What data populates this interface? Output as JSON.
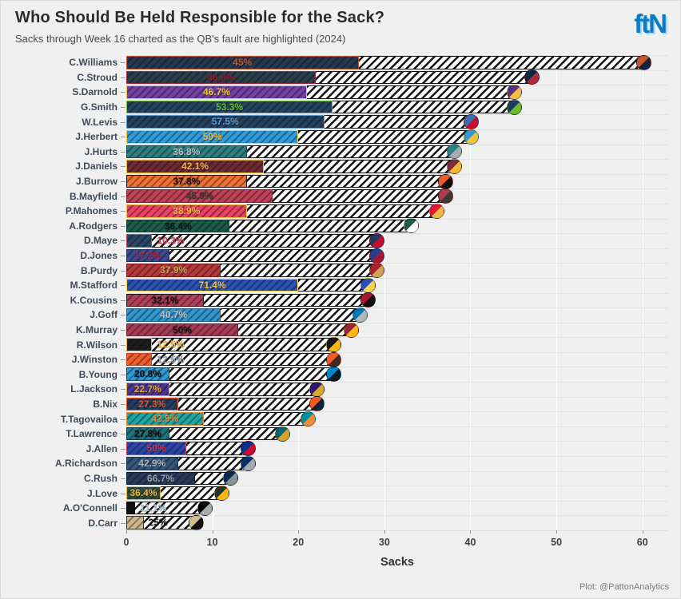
{
  "header": {
    "title": "Who Should Be Held Responsible for the Sack?",
    "subtitle": "Sacks through Week 16 charted as the QB's fault are highlighted (2024)",
    "logo_text": "ftN"
  },
  "footer": {
    "credit": "Plot: @PattonAnalytics"
  },
  "chart_data": {
    "type": "bar",
    "orientation": "horizontal",
    "title": "Who Should Be Held Responsible for the Sack?",
    "subtitle": "Sacks through Week 16 charted as the QB's fault are highlighted (2024)",
    "xlabel": "Sacks",
    "x_ticks": [
      0,
      10,
      20,
      30,
      40,
      50,
      60
    ],
    "xlim": [
      0,
      63
    ],
    "grid": true,
    "legend": "none",
    "encoding": "solid colored segment = sacks charted as the QB's fault (with % label); hatched white remainder = other sacks; team logo marks total sacks",
    "players": [
      {
        "name": "C.Williams",
        "team": "Bears",
        "pct_label": "45%",
        "pct_value": 45.0,
        "total_sacks": 60,
        "fault_sacks": 27,
        "bar_color": "#263752",
        "border_color": "#c6562e",
        "label_color": "#c6562e",
        "label_inside": true,
        "logo_colors": [
          "#c6562e",
          "#13233f"
        ]
      },
      {
        "name": "C.Stroud",
        "team": "Texans",
        "pct_label": "46.8%",
        "pct_value": 46.8,
        "total_sacks": 47,
        "fault_sacks": 22,
        "bar_color": "#2a3e4c",
        "border_color": "#9e2637",
        "label_color": "#8e1b2c",
        "label_inside": true,
        "logo_colors": [
          "#0a2a43",
          "#b32638"
        ]
      },
      {
        "name": "S.Darnold",
        "team": "Vikings",
        "pct_label": "46.7%",
        "pct_value": 46.7,
        "total_sacks": 45,
        "fault_sacks": 21,
        "bar_color": "#7142a3",
        "border_color": "#f5c246",
        "label_color": "#f2c13d",
        "label_inside": true,
        "logo_colors": [
          "#5a2f8a",
          "#f2c13d"
        ]
      },
      {
        "name": "G.Smith",
        "team": "Seahawks",
        "pct_label": "53.3%",
        "pct_value": 53.3,
        "total_sacks": 45,
        "fault_sacks": 24,
        "bar_color": "#27425f",
        "border_color": "#6fbf3a",
        "label_color": "#5fbf30",
        "label_inside": true,
        "logo_colors": [
          "#1e3a5f",
          "#69be28"
        ]
      },
      {
        "name": "W.Levis",
        "team": "Titans",
        "pct_label": "57.5%",
        "pct_value": 57.5,
        "total_sacks": 40,
        "fault_sacks": 23,
        "bar_color": "#27405e",
        "border_color": "#5d9fd6",
        "label_color": "#5d9fd6",
        "label_inside": true,
        "logo_colors": [
          "#3b6fb5",
          "#c8102e"
        ]
      },
      {
        "name": "J.Herbert",
        "team": "Chargers",
        "pct_label": "50%",
        "pct_value": 50.0,
        "total_sacks": 40,
        "fault_sacks": 20,
        "bar_color": "#2e9cdb",
        "border_color": "#f2c23e",
        "label_color": "#f2c23e",
        "label_inside": true,
        "logo_colors": [
          "#2e9cdb",
          "#f2c23e"
        ]
      },
      {
        "name": "J.Hurts",
        "team": "Eagles",
        "pct_label": "36.8%",
        "pct_value": 36.8,
        "total_sacks": 38,
        "fault_sacks": 14,
        "bar_color": "#2e7f82",
        "border_color": "#14484c",
        "label_color": "#b9c0c4",
        "label_inside": true,
        "logo_colors": [
          "#2e7f82",
          "#a5acaf"
        ]
      },
      {
        "name": "J.Daniels",
        "team": "Commanders",
        "pct_label": "42.1%",
        "pct_value": 42.1,
        "total_sacks": 38,
        "fault_sacks": 16,
        "bar_color": "#6d2a33",
        "border_color": "#f0b63b",
        "label_color": "#f0b63b",
        "label_inside": true,
        "logo_colors": [
          "#7a2e39",
          "#f0b63b"
        ]
      },
      {
        "name": "J.Burrow",
        "team": "Bengals",
        "pct_label": "37.8%",
        "pct_value": 37.8,
        "total_sacks": 37,
        "fault_sacks": 14,
        "bar_color": "#f17032",
        "border_color": "#1a1a1a",
        "label_color": "#111111",
        "label_inside": true,
        "logo_colors": [
          "#f05a24",
          "#101010"
        ]
      },
      {
        "name": "B.Mayfield",
        "team": "Buccaneers",
        "pct_label": "45.9%",
        "pct_value": 45.9,
        "total_sacks": 37,
        "fault_sacks": 17,
        "bar_color": "#c04158",
        "border_color": "#7e2231",
        "label_color": "#3c3a33",
        "label_inside": true,
        "logo_colors": [
          "#b33a4e",
          "#3e3a35"
        ]
      },
      {
        "name": "P.Mahomes",
        "team": "Chiefs",
        "pct_label": "38.9%",
        "pct_value": 38.9,
        "total_sacks": 36,
        "fault_sacks": 14,
        "bar_color": "#ed4163",
        "border_color": "#f2b649",
        "label_color": "#f2b649",
        "label_inside": true,
        "logo_colors": [
          "#e31837",
          "#f2b649"
        ]
      },
      {
        "name": "A.Rodgers",
        "team": "Jets",
        "pct_label": "36.4%",
        "pct_value": 36.4,
        "total_sacks": 33,
        "fault_sacks": 12,
        "bar_color": "#1c5b49",
        "border_color": "#0f3a2e",
        "label_color": "#0d1f18",
        "label_inside": true,
        "logo_colors": [
          "#1c5b49",
          "#ffffff"
        ]
      },
      {
        "name": "D.Maye",
        "team": "Patriots",
        "pct_label": "10.3%",
        "pct_value": 10.3,
        "total_sacks": 29,
        "fault_sacks": 3,
        "bar_color": "#2a4565",
        "border_color": "#c94257",
        "label_color": "#c94257",
        "label_inside": false,
        "logo_colors": [
          "#1f3a5f",
          "#c60c30"
        ]
      },
      {
        "name": "D.Jones",
        "team": "Giants",
        "pct_label": "17.2%",
        "pct_value": 17.2,
        "total_sacks": 29,
        "fault_sacks": 5,
        "bar_color": "#3a4c96",
        "border_color": "#232e61",
        "label_color": "#b5293b",
        "label_inside": true,
        "logo_colors": [
          "#2b3c8f",
          "#a71930"
        ]
      },
      {
        "name": "B.Purdy",
        "team": "49ers",
        "pct_label": "37.9%",
        "pct_value": 37.9,
        "total_sacks": 29,
        "fault_sacks": 11,
        "bar_color": "#b73838",
        "border_color": "#7e1f1f",
        "label_color": "#c9a558",
        "label_inside": true,
        "logo_colors": [
          "#a81f2e",
          "#c9a558"
        ]
      },
      {
        "name": "M.Stafford",
        "team": "Rams",
        "pct_label": "71.4%",
        "pct_value": 71.4,
        "total_sacks": 28,
        "fault_sacks": 20,
        "bar_color": "#2c51b5",
        "border_color": "#f5d44f",
        "label_color": "#f5c938",
        "label_inside": true,
        "logo_colors": [
          "#2c51b5",
          "#f5d44f"
        ]
      },
      {
        "name": "K.Cousins",
        "team": "Falcons",
        "pct_label": "32.1%",
        "pct_value": 32.1,
        "total_sacks": 28,
        "fault_sacks": 9,
        "bar_color": "#b24059",
        "border_color": "#27161b",
        "label_color": "#101010",
        "label_inside": true,
        "logo_colors": [
          "#a71930",
          "#101010"
        ]
      },
      {
        "name": "J.Goff",
        "team": "Lions",
        "pct_label": "40.7%",
        "pct_value": 40.7,
        "total_sacks": 27,
        "fault_sacks": 11,
        "bar_color": "#3396cf",
        "border_color": "#22688f",
        "label_color": "#bcc4c9",
        "label_inside": true,
        "logo_colors": [
          "#0076b6",
          "#b0b7bc"
        ]
      },
      {
        "name": "K.Murray",
        "team": "Cardinals",
        "pct_label": "50%",
        "pct_value": 50.0,
        "total_sacks": 26,
        "fault_sacks": 13,
        "bar_color": "#a63b56",
        "border_color": "#731f35",
        "label_color": "#151515",
        "label_inside": true,
        "logo_colors": [
          "#97233f",
          "#ffb612"
        ]
      },
      {
        "name": "R.Wilson",
        "team": "Steelers",
        "pct_label": "12.5%",
        "pct_value": 12.5,
        "total_sacks": 24,
        "fault_sacks": 3,
        "bar_color": "#1d1d1f",
        "border_color": "#efb33c",
        "label_color": "#efb33c",
        "label_inside": false,
        "logo_colors": [
          "#101820",
          "#ffb612"
        ]
      },
      {
        "name": "J.Winston",
        "team": "Browns",
        "pct_label": "12.5%",
        "pct_value": 12.5,
        "total_sacks": 24,
        "fault_sacks": 3,
        "bar_color": "#f15a2b",
        "border_color": "#c2441c",
        "label_color": "#8fa3b0",
        "label_inside": false,
        "logo_colors": [
          "#f15a2b",
          "#3e2b1f"
        ]
      },
      {
        "name": "B.Young",
        "team": "Panthers",
        "pct_label": "20.8%",
        "pct_value": 20.8,
        "total_sacks": 24,
        "fault_sacks": 5,
        "bar_color": "#2e9ad6",
        "border_color": "#15405c",
        "label_color": "#0e0e0e",
        "label_inside": true,
        "logo_colors": [
          "#0085ca",
          "#101820"
        ]
      },
      {
        "name": "L.Jackson",
        "team": "Ravens",
        "pct_label": "22.7%",
        "pct_value": 22.7,
        "total_sacks": 22,
        "fault_sacks": 5,
        "bar_color": "#4d3590",
        "border_color": "#d9a62e",
        "label_color": "#e3a92f",
        "label_inside": true,
        "logo_colors": [
          "#2e1a66",
          "#d9a62e"
        ]
      },
      {
        "name": "B.Nix",
        "team": "Broncos",
        "pct_label": "27.3%",
        "pct_value": 27.3,
        "total_sacks": 22,
        "fault_sacks": 6,
        "bar_color": "#223c5f",
        "border_color": "#e8562a",
        "label_color": "#e8562a",
        "label_inside": true,
        "logo_colors": [
          "#f15a22",
          "#0a2343"
        ]
      },
      {
        "name": "T.Tagovailoa",
        "team": "Dolphins",
        "pct_label": "42.9%",
        "pct_value": 42.9,
        "total_sacks": 21,
        "fault_sacks": 9,
        "bar_color": "#1fa7a8",
        "border_color": "#f08a35",
        "label_color": "#f08a35",
        "label_inside": true,
        "logo_colors": [
          "#008e97",
          "#f08a35"
        ]
      },
      {
        "name": "T.Lawrence",
        "team": "Jaguars",
        "pct_label": "27.8%",
        "pct_value": 27.8,
        "total_sacks": 18,
        "fault_sacks": 5,
        "bar_color": "#20747f",
        "border_color": "#0e3a41",
        "label_color": "#0c0c0c",
        "label_inside": true,
        "logo_colors": [
          "#006778",
          "#d7a22a"
        ]
      },
      {
        "name": "J.Allen",
        "team": "Bills",
        "pct_label": "50%",
        "pct_value": 50.0,
        "total_sacks": 14,
        "fault_sacks": 7,
        "bar_color": "#2c46a8",
        "border_color": "#d33a55",
        "label_color": "#cc3550",
        "label_inside": true,
        "logo_colors": [
          "#00338d",
          "#c60c30"
        ]
      },
      {
        "name": "A.Richardson",
        "team": "Colts",
        "pct_label": "42.9%",
        "pct_value": 42.9,
        "total_sacks": 14,
        "fault_sacks": 6,
        "bar_color": "#35567c",
        "border_color": "#1c3354",
        "label_color": "#aeb6bc",
        "label_inside": true,
        "logo_colors": [
          "#013369",
          "#a2aaad"
        ]
      },
      {
        "name": "C.Rush",
        "team": "Cowboys",
        "pct_label": "66.7%",
        "pct_value": 66.7,
        "total_sacks": 12,
        "fault_sacks": 8,
        "bar_color": "#26395b",
        "border_color": "#101e35",
        "label_color": "#9ba4ae",
        "label_inside": true,
        "logo_colors": [
          "#0a2a53",
          "#869397"
        ]
      },
      {
        "name": "J.Love",
        "team": "Packers",
        "pct_label": "36.4%",
        "pct_value": 36.4,
        "total_sacks": 11,
        "fault_sacks": 4,
        "bar_color": "#2c4a40",
        "border_color": "#efb636",
        "label_color": "#efb636",
        "label_inside": true,
        "logo_colors": [
          "#203731",
          "#ffb612"
        ]
      },
      {
        "name": "A.O'Connell",
        "team": "Raiders",
        "pct_label": "11.1%",
        "pct_value": 11.1,
        "total_sacks": 9,
        "fault_sacks": 1,
        "bar_color": "#121212",
        "border_color": "#000000",
        "label_color": "#a8c4d4",
        "label_inside": false,
        "logo_colors": [
          "#000000",
          "#a5acaf"
        ]
      },
      {
        "name": "D.Carr",
        "team": "Saints",
        "pct_label": "25%",
        "pct_value": 25.0,
        "total_sacks": 8,
        "fault_sacks": 2,
        "bar_color": "#cdb68a",
        "border_color": "#3b3323",
        "label_color": "#151515",
        "label_inside": false,
        "logo_colors": [
          "#d3bc8d",
          "#101010"
        ]
      }
    ]
  }
}
